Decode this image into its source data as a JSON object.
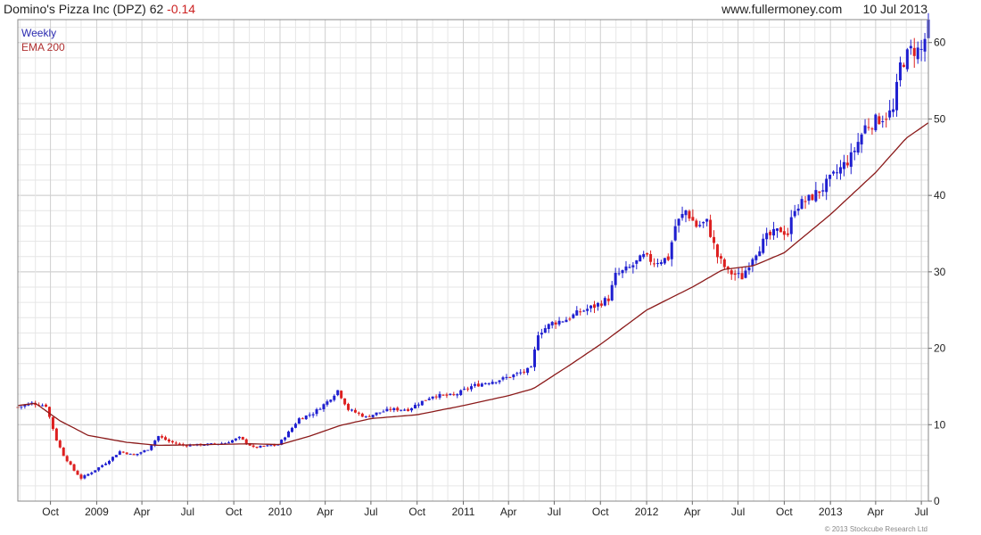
{
  "header": {
    "title": "Domino's Pizza Inc (DPZ) 62",
    "change": "-0.14",
    "site": "www.fullermoney.com",
    "date": "10 Jul 2013"
  },
  "legend": {
    "weekly": "Weekly",
    "ema": "EMA 200"
  },
  "footer": {
    "copyright": "© 2013 Stockcube Research Ltd"
  },
  "colors": {
    "up": "#1f1fd0",
    "down": "#dd2020",
    "ema": "#8b1a1a",
    "grid_major": "#c8c8c8",
    "grid_minor": "#e6e6e6"
  },
  "chart_data": {
    "type": "candlestick",
    "ylim": [
      0,
      63
    ],
    "y_ticks": [
      0,
      10,
      20,
      30,
      40,
      50,
      60
    ],
    "x_range": [
      "2008-07-28",
      "2013-07-15"
    ],
    "x_ticks": [
      {
        "label": "Oct",
        "date": "2008-10-01"
      },
      {
        "label": "2009",
        "date": "2009-01-01"
      },
      {
        "label": "Apr",
        "date": "2009-04-01"
      },
      {
        "label": "Jul",
        "date": "2009-07-01"
      },
      {
        "label": "Oct",
        "date": "2009-10-01"
      },
      {
        "label": "2010",
        "date": "2010-01-01"
      },
      {
        "label": "Apr",
        "date": "2010-04-01"
      },
      {
        "label": "Jul",
        "date": "2010-07-01"
      },
      {
        "label": "Oct",
        "date": "2010-10-01"
      },
      {
        "label": "2011",
        "date": "2011-01-01"
      },
      {
        "label": "Apr",
        "date": "2011-04-01"
      },
      {
        "label": "Jul",
        "date": "2011-07-01"
      },
      {
        "label": "Oct",
        "date": "2011-10-01"
      },
      {
        "label": "2012",
        "date": "2012-01-01"
      },
      {
        "label": "Apr",
        "date": "2012-04-01"
      },
      {
        "label": "Jul",
        "date": "2012-07-01"
      },
      {
        "label": "Oct",
        "date": "2012-10-01"
      },
      {
        "label": "2013",
        "date": "2013-01-01"
      },
      {
        "label": "Apr",
        "date": "2013-04-01"
      },
      {
        "label": "Jul",
        "date": "2013-07-01"
      }
    ],
    "price_key_points": [
      [
        "2008-07-28",
        12.3
      ],
      [
        "2008-08-25",
        12.8
      ],
      [
        "2008-09-22",
        12.5
      ],
      [
        "2008-10-13",
        8.0
      ],
      [
        "2008-10-27",
        6.0
      ],
      [
        "2008-11-17",
        4.0
      ],
      [
        "2008-12-01",
        3.0
      ],
      [
        "2008-12-22",
        3.8
      ],
      [
        "2009-01-19",
        5.0
      ],
      [
        "2009-02-16",
        6.5
      ],
      [
        "2009-03-16",
        6.0
      ],
      [
        "2009-04-13",
        6.8
      ],
      [
        "2009-05-04",
        8.5
      ],
      [
        "2009-05-25",
        7.8
      ],
      [
        "2009-06-22",
        7.3
      ],
      [
        "2009-08-03",
        7.4
      ],
      [
        "2009-09-14",
        7.6
      ],
      [
        "2009-10-12",
        8.3
      ],
      [
        "2009-11-09",
        7.0
      ],
      [
        "2009-12-28",
        7.4
      ],
      [
        "2010-01-18",
        9.0
      ],
      [
        "2010-02-08",
        10.8
      ],
      [
        "2010-03-08",
        11.5
      ],
      [
        "2010-04-05",
        13.0
      ],
      [
        "2010-04-26",
        14.5
      ],
      [
        "2010-05-17",
        12.0
      ],
      [
        "2010-06-21",
        11.0
      ],
      [
        "2010-07-12",
        11.5
      ],
      [
        "2010-08-09",
        12.0
      ],
      [
        "2010-09-13",
        12.0
      ],
      [
        "2010-10-04",
        12.8
      ],
      [
        "2010-11-01",
        13.8
      ],
      [
        "2010-12-13",
        13.8
      ],
      [
        "2011-01-17",
        15.0
      ],
      [
        "2011-02-14",
        15.5
      ],
      [
        "2011-03-21",
        16.0
      ],
      [
        "2011-04-25",
        16.8
      ],
      [
        "2011-05-16",
        17.3
      ],
      [
        "2011-05-30",
        22.0
      ],
      [
        "2011-06-27",
        23.3
      ],
      [
        "2011-07-25",
        23.8
      ],
      [
        "2011-08-22",
        24.8
      ],
      [
        "2011-09-19",
        25.5
      ],
      [
        "2011-10-17",
        26.5
      ],
      [
        "2011-10-31",
        29.5
      ],
      [
        "2011-11-28",
        30.5
      ],
      [
        "2011-12-26",
        32.0
      ],
      [
        "2012-01-16",
        31.3
      ],
      [
        "2012-02-13",
        31.8
      ],
      [
        "2012-02-27",
        36.0
      ],
      [
        "2012-03-19",
        38.0
      ],
      [
        "2012-04-09",
        36.0
      ],
      [
        "2012-04-30",
        36.5
      ],
      [
        "2012-05-21",
        32.0
      ],
      [
        "2012-06-11",
        30.0
      ],
      [
        "2012-07-09",
        29.3
      ],
      [
        "2012-07-30",
        32.0
      ],
      [
        "2012-08-27",
        34.5
      ],
      [
        "2012-09-24",
        35.5
      ],
      [
        "2012-10-08",
        35.0
      ],
      [
        "2012-10-22",
        38.5
      ],
      [
        "2012-11-19",
        39.5
      ],
      [
        "2012-12-17",
        41.0
      ],
      [
        "2013-01-14",
        43.0
      ],
      [
        "2013-02-11",
        45.0
      ],
      [
        "2013-03-11",
        49.0
      ],
      [
        "2013-04-08",
        50.0
      ],
      [
        "2013-05-06",
        51.0
      ],
      [
        "2013-05-20",
        57.0
      ],
      [
        "2013-06-10",
        59.0
      ],
      [
        "2013-07-01",
        59.0
      ],
      [
        "2013-07-15",
        62.0
      ]
    ],
    "ema_key_points": [
      [
        "2008-07-28",
        12.5
      ],
      [
        "2008-09-01",
        12.8
      ],
      [
        "2008-10-20",
        10.5
      ],
      [
        "2008-12-15",
        8.6
      ],
      [
        "2009-03-01",
        7.7
      ],
      [
        "2009-05-01",
        7.3
      ],
      [
        "2009-07-01",
        7.35
      ],
      [
        "2009-11-01",
        7.5
      ],
      [
        "2010-01-01",
        7.4
      ],
      [
        "2010-03-01",
        8.5
      ],
      [
        "2010-05-01",
        9.9
      ],
      [
        "2010-07-01",
        10.8
      ],
      [
        "2010-10-01",
        11.3
      ],
      [
        "2011-01-01",
        12.5
      ],
      [
        "2011-04-01",
        13.8
      ],
      [
        "2011-05-20",
        14.7
      ],
      [
        "2011-08-01",
        17.8
      ],
      [
        "2011-10-01",
        20.5
      ],
      [
        "2012-01-01",
        25.0
      ],
      [
        "2012-04-01",
        28.0
      ],
      [
        "2012-06-01",
        30.3
      ],
      [
        "2012-08-01",
        30.8
      ],
      [
        "2012-10-01",
        32.5
      ],
      [
        "2013-01-01",
        37.5
      ],
      [
        "2013-04-01",
        43.0
      ],
      [
        "2013-06-01",
        47.5
      ],
      [
        "2013-07-15",
        49.5
      ]
    ]
  }
}
